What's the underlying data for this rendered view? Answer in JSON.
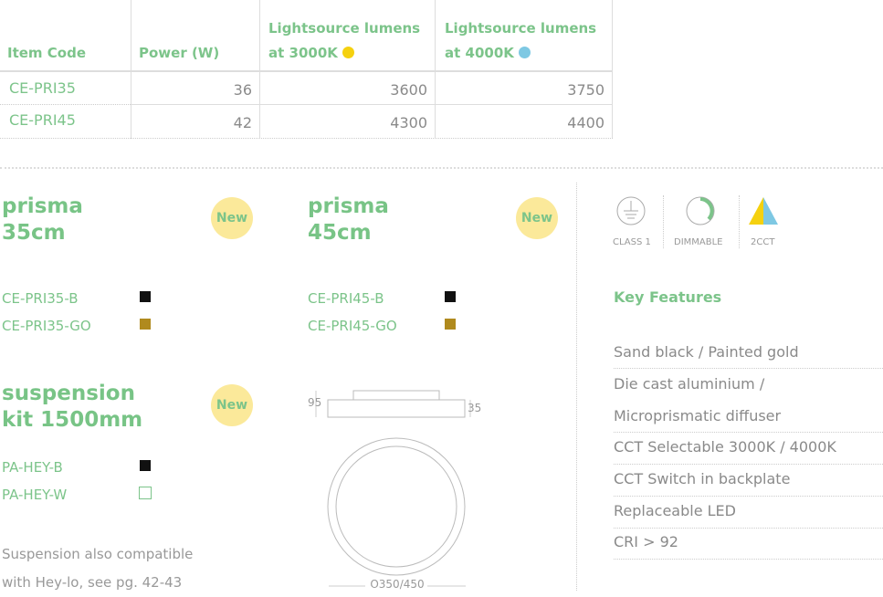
{
  "table": {
    "headers": [
      "Item Code",
      "Power (W)",
      "Lightsource lumens at 3000K",
      "Lightsource lumens at 4000K"
    ],
    "header_lines": [
      [
        "Item Code"
      ],
      [
        "Power (W)"
      ],
      [
        "Lightsource lumens",
        "at 3000K"
      ],
      [
        "Lightsource lumens",
        "at 4000K"
      ]
    ],
    "rows": [
      [
        "CE-PRI35",
        "36",
        "3600",
        "3750"
      ],
      [
        "CE-PRI45",
        "42",
        "4300",
        "4400"
      ]
    ],
    "dot_colors": {
      "3000K": "#f5d10f",
      "4000K": "#7ec8e3"
    }
  },
  "products": [
    {
      "title_lines": [
        "prisma",
        "35cm"
      ],
      "badge": "New",
      "variants": [
        {
          "code": "CE-PRI35-B",
          "color": "#111111"
        },
        {
          "code": "CE-PRI35-GO",
          "color": "#b08a1e"
        }
      ]
    },
    {
      "title_lines": [
        "prisma",
        "45cm"
      ],
      "badge": "New",
      "variants": [
        {
          "code": "CE-PRI45-B",
          "color": "#111111"
        },
        {
          "code": "CE-PRI45-GO",
          "color": "#b08a1e"
        }
      ]
    },
    {
      "title_lines": [
        "suspension",
        "kit 1500mm"
      ],
      "badge": "New",
      "variants": [
        {
          "code": "PA-HEY-B",
          "color": "#111111"
        },
        {
          "code": "PA-HEY-W",
          "color": "#ffffff"
        }
      ]
    }
  ],
  "note_lines": [
    "Suspension also compatible",
    "with Hey-lo, see pg. 42-43"
  ],
  "drawing": {
    "height_total": "95",
    "height_body": "35",
    "diameter": "O350/450"
  },
  "icons": [
    {
      "name": "class-1-earth-icon",
      "label": "CLASS 1"
    },
    {
      "name": "dimmable-icon",
      "label": "DIMMABLE"
    },
    {
      "name": "2cct-icon",
      "label": "2CCT"
    }
  ],
  "key_features": {
    "heading": "Key Features",
    "items": [
      "Sand black / Painted gold",
      "Die cast aluminium /",
      "Microprismatic diffuser",
      "CCT Selectable 3000K / 4000K",
      "CCT Switch in backplate",
      "Replaceable LED",
      "CRI > 92"
    ]
  },
  "colors": {
    "accent_green": "#7cc48a",
    "badge_yellow": "#fbe99a"
  }
}
